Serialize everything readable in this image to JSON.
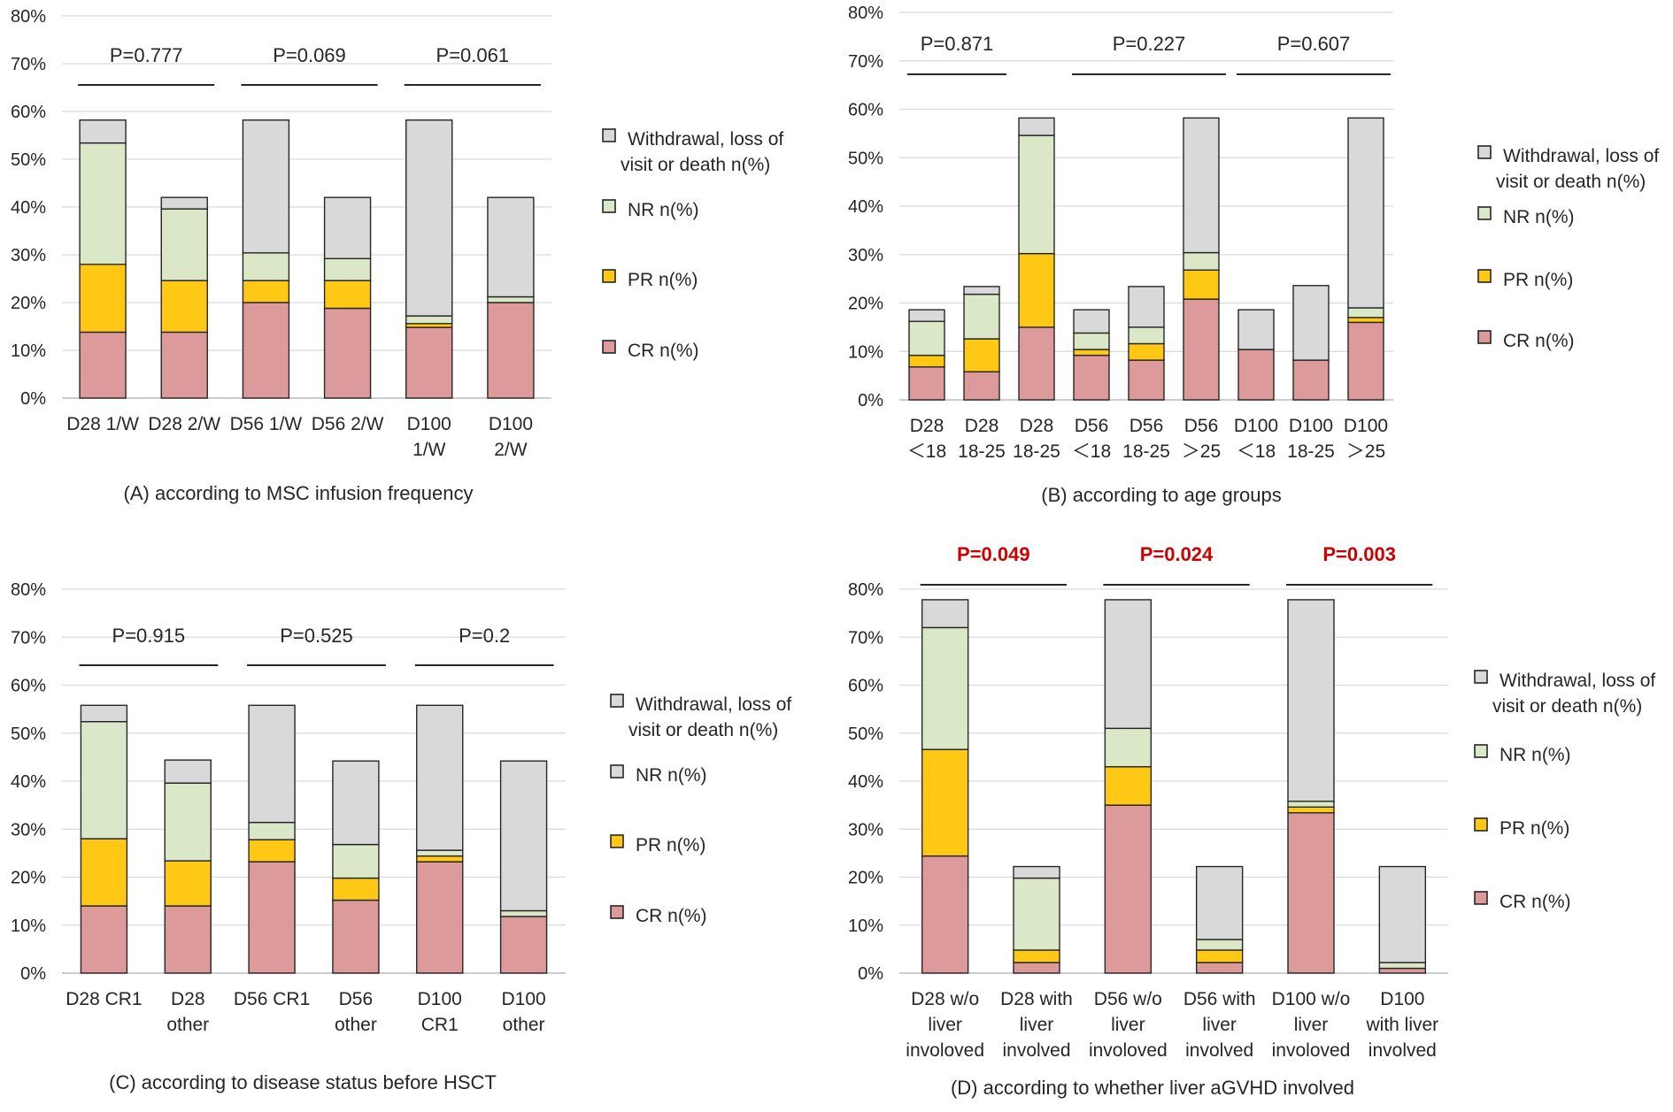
{
  "colors": {
    "CR": "#dc9a9b",
    "PR": "#ffc814",
    "NR": "#dae8c8",
    "Withdrawal": "#d9d9d9",
    "stroke": "#262626",
    "grid": "#d9d9d9",
    "p_normal": "#262626",
    "p_significant": "#cc0000"
  },
  "chart_data": [
    {
      "panel": "A",
      "type": "bar",
      "stacked": true,
      "title": "(A)  according to MSC  infusion frequency",
      "ylim": [
        0,
        80
      ],
      "yticks": [
        "0%",
        "10%",
        "20%",
        "30%",
        "40%",
        "50%",
        "60%",
        "70%",
        "80%"
      ],
      "categories": [
        [
          "D28 1/W"
        ],
        [
          "D28 2/W"
        ],
        [
          "D56 1/W"
        ],
        [
          "D56 2/W"
        ],
        [
          "D100",
          "1/W"
        ],
        [
          "D100",
          "2/W"
        ]
      ],
      "series": [
        {
          "name": "CR n(%)",
          "key": "CR",
          "values": [
            13.8,
            13.8,
            20,
            18.8,
            14.8,
            20
          ]
        },
        {
          "name": "PR n(%)",
          "key": "PR",
          "values": [
            14.2,
            10.8,
            4.6,
            5.8,
            0.8,
            0
          ]
        },
        {
          "name": "NR n(%)",
          "key": "NR",
          "values": [
            25.4,
            15,
            5.8,
            4.6,
            1.6,
            1.2
          ]
        },
        {
          "name": "Withdrawal, loss of visit or death n(%)",
          "key": "Withdrawal",
          "values": [
            4.8,
            2.4,
            27.8,
            12.8,
            41,
            20.8
          ]
        }
      ],
      "legend": [
        "Withdrawal, loss of|visit or death n(%)",
        "NR n(%)",
        "PR n(%)",
        "CR n(%)"
      ],
      "p_values": [
        {
          "label": "P=0.777",
          "pair": [
            0,
            1
          ],
          "significant": false
        },
        {
          "label": "P=0.069",
          "pair": [
            2,
            3
          ],
          "significant": false
        },
        {
          "label": "P=0.061",
          "pair": [
            4,
            5
          ],
          "significant": false
        }
      ]
    },
    {
      "panel": "B",
      "type": "bar",
      "stacked": true,
      "title": "(B)  according to age groups",
      "ylim": [
        0,
        80
      ],
      "yticks": [
        "0%",
        "10%",
        "20%",
        "30%",
        "40%",
        "50%",
        "60%",
        "70%",
        "80%"
      ],
      "categories": [
        [
          "D28",
          "＜18"
        ],
        [
          "D28",
          "18-25"
        ],
        [
          "D28",
          "18-25"
        ],
        [
          "D56",
          "＜18"
        ],
        [
          "D56",
          "18-25"
        ],
        [
          "D56",
          "＞25"
        ],
        [
          "D100",
          "＜18"
        ],
        [
          "D100",
          "18-25"
        ],
        [
          "D100",
          "＞25"
        ]
      ],
      "series": [
        {
          "name": "CR n(%)",
          "key": "CR",
          "values": [
            6.8,
            5.8,
            15,
            9.2,
            8.2,
            20.8,
            10.4,
            8.2,
            16
          ]
        },
        {
          "name": "PR n(%)",
          "key": "PR",
          "values": [
            2.4,
            6.8,
            15.2,
            1.2,
            3.4,
            6,
            0,
            0,
            1
          ]
        },
        {
          "name": "NR n(%)",
          "key": "NR",
          "values": [
            7,
            9.2,
            24.4,
            3.4,
            3.4,
            3.6,
            0,
            0,
            2
          ]
        },
        {
          "name": "Withdrawal, loss of visit or death n(%)",
          "key": "Withdrawal",
          "values": [
            2.4,
            1.6,
            3.6,
            4.8,
            8.4,
            27.8,
            8.2,
            15.4,
            39.2
          ]
        }
      ],
      "legend": [
        "Withdrawal, loss of|visit or death n(%)",
        "NR n(%)",
        "PR n(%)",
        "CR n(%)"
      ],
      "p_values": [
        {
          "label": "P=0.871",
          "pair": [
            0,
            1
          ],
          "significant": false
        },
        {
          "label": "P=0.227",
          "pair": [
            3,
            5
          ],
          "significant": false
        },
        {
          "label": "P=0.607",
          "pair": [
            6,
            8
          ],
          "significant": false
        }
      ]
    },
    {
      "panel": "C",
      "type": "bar",
      "stacked": true,
      "title": "(C)  according to disease status before HSCT",
      "ylim": [
        0,
        80
      ],
      "yticks": [
        "0%",
        "10%",
        "20%",
        "30%",
        "40%",
        "50%",
        "60%",
        "70%",
        "80%"
      ],
      "categories": [
        [
          "D28 CR1"
        ],
        [
          "D28",
          "other"
        ],
        [
          "D56 CR1"
        ],
        [
          "D56",
          "other"
        ],
        [
          "D100",
          "CR1"
        ],
        [
          "D100",
          "other"
        ]
      ],
      "series": [
        {
          "name": "CR n(%)",
          "key": "CR",
          "values": [
            14,
            14,
            23.2,
            15.2,
            23.2,
            11.8
          ]
        },
        {
          "name": "PR n(%)",
          "key": "PR",
          "values": [
            14,
            9.4,
            4.6,
            4.6,
            1.2,
            0
          ]
        },
        {
          "name": "NR n(%)",
          "key": "NR",
          "values": [
            24.4,
            16.2,
            3.6,
            7,
            1.2,
            1.2
          ]
        },
        {
          "name": "Withdrawal, loss of visit or death n(%)",
          "key": "Withdrawal",
          "values": [
            3.4,
            4.8,
            24.4,
            17.4,
            30.2,
            31.2
          ]
        }
      ],
      "legend": [
        "Withdrawal, loss of|visit or death n(%)",
        "NR n(%)",
        "PR n(%)",
        "CR n(%)"
      ],
      "legend_markers": [
        "Withdrawal",
        "Withdrawal",
        "PR",
        "CR"
      ],
      "p_values": [
        {
          "label": "P=0.915",
          "pair": [
            0,
            1
          ],
          "significant": false
        },
        {
          "label": "P=0.525",
          "pair": [
            2,
            3
          ],
          "significant": false
        },
        {
          "label": "P=0.2",
          "pair": [
            4,
            5
          ],
          "significant": false
        }
      ]
    },
    {
      "panel": "D",
      "type": "bar",
      "stacked": true,
      "title": "(D)  according to whether  liver aGVHD  involved",
      "ylim": [
        0,
        80
      ],
      "yticks": [
        "0%",
        "10%",
        "20%",
        "30%",
        "40%",
        "50%",
        "60%",
        "70%",
        "80%"
      ],
      "categories": [
        [
          "D28 w/o",
          "liver",
          "involoved"
        ],
        [
          "D28 with",
          "liver",
          "involved"
        ],
        [
          "D56 w/o",
          "liver",
          "involoved"
        ],
        [
          "D56 with",
          "liver",
          "involved"
        ],
        [
          "D100 w/o",
          "liver",
          "involoved"
        ],
        [
          "D100",
          "with liver",
          "involved"
        ]
      ],
      "series": [
        {
          "name": "CR n(%)",
          "key": "CR",
          "values": [
            24.4,
            2.2,
            35,
            2.2,
            33.4,
            1
          ]
        },
        {
          "name": "PR n(%)",
          "key": "PR",
          "values": [
            22.2,
            2.6,
            8,
            2.6,
            1.2,
            0
          ]
        },
        {
          "name": "NR n(%)",
          "key": "NR",
          "values": [
            25.4,
            15,
            8,
            2.2,
            1.2,
            1.2
          ]
        },
        {
          "name": "Withdrawal, loss of visit or death n(%)",
          "key": "Withdrawal",
          "values": [
            5.8,
            2.4,
            26.8,
            15.2,
            42,
            20
          ]
        }
      ],
      "legend": [
        "Withdrawal, loss of|visit or death n(%)",
        "NR n(%)",
        "PR n(%)",
        "CR n(%)"
      ],
      "p_values": [
        {
          "label": "P=0.049",
          "pair": [
            0,
            1
          ],
          "significant": true
        },
        {
          "label": "P=0.024",
          "pair": [
            2,
            3
          ],
          "significant": true
        },
        {
          "label": "P=0.003",
          "pair": [
            4,
            5
          ],
          "significant": true
        }
      ]
    }
  ]
}
